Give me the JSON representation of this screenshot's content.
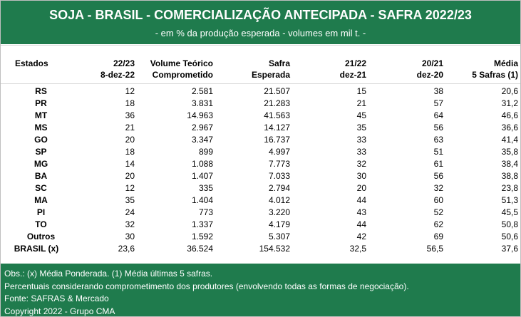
{
  "title": "SOJA - BRASIL - COMERCIALIZAÇÃO ANTECIPADA - SAFRA 2022/23",
  "subtitle": "- em % da produção esperada - volumes em mil t. -",
  "headers": {
    "estados": "Estados",
    "c1_line1": "22/23",
    "c1_line2": "8-dez-22",
    "c2_line1": "Volume Teórico",
    "c2_line2": "Comprometido",
    "c3_line1": "Safra",
    "c3_line2": "Esperada",
    "c4_line1": "21/22",
    "c4_line2": "dez-21",
    "c5_line1": "20/21",
    "c5_line2": "dez-20",
    "c6_line1": "Média",
    "c6_line2": "5 Safras (1)"
  },
  "rows": [
    {
      "estado": "RS",
      "c1": "12",
      "c2": "2.581",
      "c3": "21.507",
      "c4": "15",
      "c5": "38",
      "c6": "20,6"
    },
    {
      "estado": "PR",
      "c1": "18",
      "c2": "3.831",
      "c3": "21.283",
      "c4": "21",
      "c5": "57",
      "c6": "31,2"
    },
    {
      "estado": "MT",
      "c1": "36",
      "c2": "14.963",
      "c3": "41.563",
      "c4": "45",
      "c5": "64",
      "c6": "46,6"
    },
    {
      "estado": "MS",
      "c1": "21",
      "c2": "2.967",
      "c3": "14.127",
      "c4": "35",
      "c5": "56",
      "c6": "36,6"
    },
    {
      "estado": "GO",
      "c1": "20",
      "c2": "3.347",
      "c3": "16.737",
      "c4": "33",
      "c5": "63",
      "c6": "41,4"
    },
    {
      "estado": "SP",
      "c1": "18",
      "c2": "899",
      "c3": "4.997",
      "c4": "33",
      "c5": "51",
      "c6": "35,8"
    },
    {
      "estado": "MG",
      "c1": "14",
      "c2": "1.088",
      "c3": "7.773",
      "c4": "32",
      "c5": "61",
      "c6": "38,4"
    },
    {
      "estado": "BA",
      "c1": "20",
      "c2": "1.407",
      "c3": "7.033",
      "c4": "30",
      "c5": "56",
      "c6": "38,8"
    },
    {
      "estado": "SC",
      "c1": "12",
      "c2": "335",
      "c3": "2.794",
      "c4": "20",
      "c5": "32",
      "c6": "23,8"
    },
    {
      "estado": "MA",
      "c1": "35",
      "c2": "1.404",
      "c3": "4.012",
      "c4": "44",
      "c5": "60",
      "c6": "51,3"
    },
    {
      "estado": "PI",
      "c1": "24",
      "c2": "773",
      "c3": "3.220",
      "c4": "43",
      "c5": "52",
      "c6": "45,5"
    },
    {
      "estado": "TO",
      "c1": "32",
      "c2": "1.337",
      "c3": "4.179",
      "c4": "44",
      "c5": "62",
      "c6": "50,8"
    },
    {
      "estado": "Outros",
      "c1": "30",
      "c2": "1.592",
      "c3": "5.307",
      "c4": "42",
      "c5": "69",
      "c6": "50,6"
    },
    {
      "estado": "BRASIL (x)",
      "c1": "23,6",
      "c2": "36.524",
      "c3": "154.532",
      "c4": "32,5",
      "c5": "56,5",
      "c6": "37,6"
    }
  ],
  "footer": {
    "line1": "Obs.: (x) Média Ponderada.  (1) Média últimas 5 safras.",
    "line2": "Percentuais considerando comprometimento dos produtores (envolvendo todas as formas de negociação).",
    "line3": "Fonte: SAFRAS & Mercado",
    "line4": "Copyright 2022 - Grupo CMA"
  }
}
